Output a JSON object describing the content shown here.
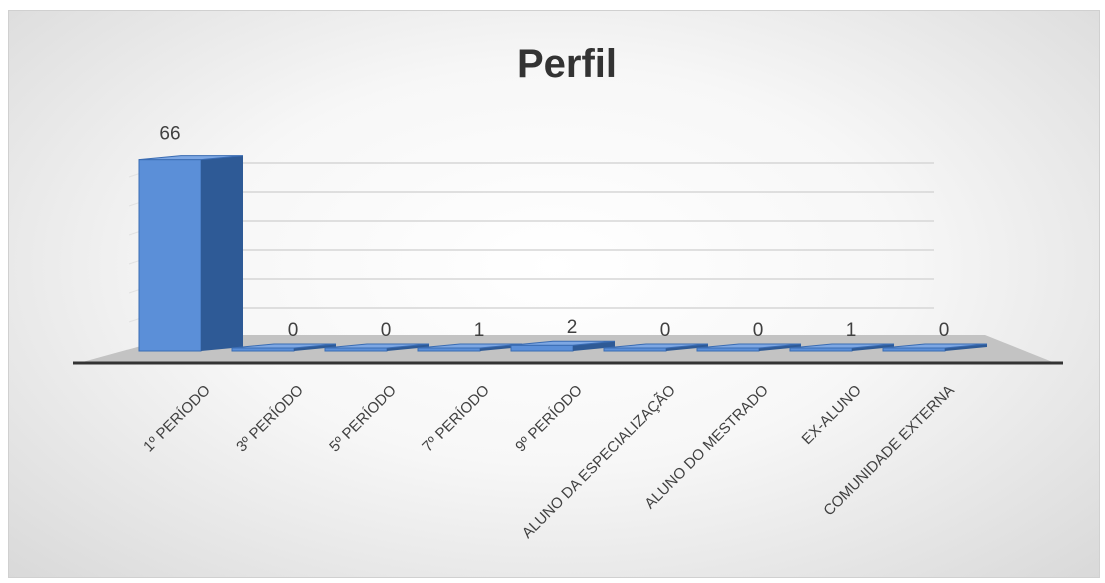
{
  "chart_data": {
    "type": "bar",
    "title": "Perfil",
    "categories": [
      "1º PERÍODO",
      "3º PERÍODO",
      "5º PERÍODO",
      "7º PERÍODO",
      "9º PERÍODO",
      "ALUNO DA ESPECIALIZAÇÃO",
      "ALUNO DO MESTRADO",
      "EX-ALUNO",
      "COMUNIDADE EXTERNA"
    ],
    "values": [
      66,
      0,
      0,
      1,
      2,
      0,
      0,
      1,
      0
    ],
    "data_labels": [
      "66",
      "0",
      "0",
      "1",
      "2",
      "0",
      "0",
      "1",
      "0"
    ],
    "grid": true,
    "legend": "none",
    "style": "3d-column",
    "colors": {
      "bar_front": "#5b8fd8",
      "bar_side": "#2e5a96",
      "bar_top": "#7da7e3",
      "floor": "#c3c3c3",
      "gridline": "#d6d6d6"
    }
  }
}
